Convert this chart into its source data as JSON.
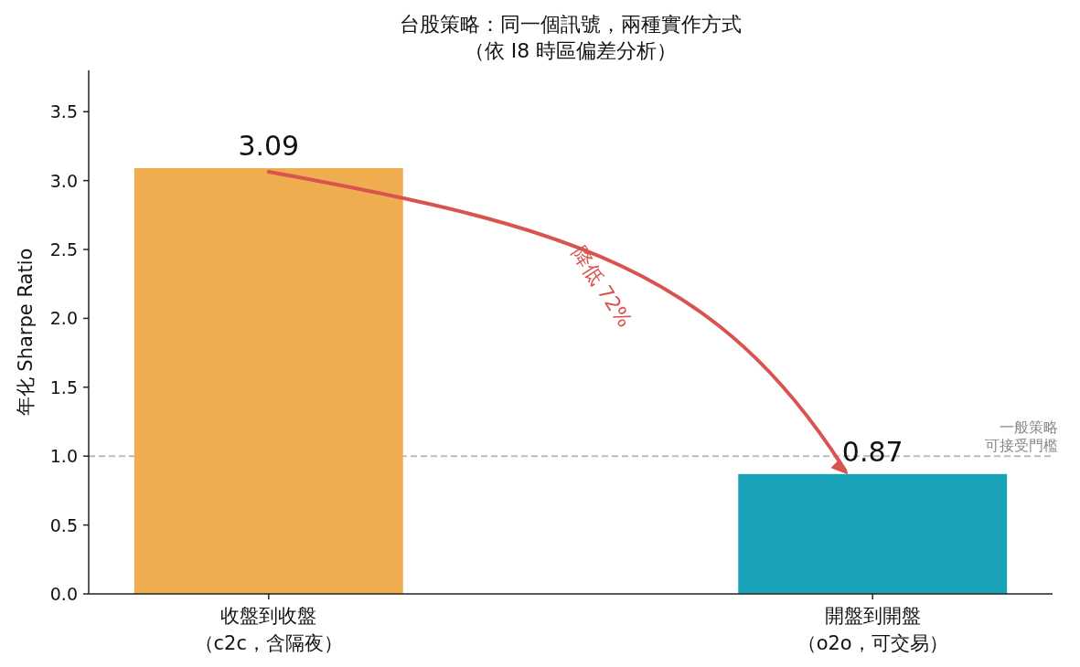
{
  "chart_data": {
    "type": "bar",
    "title": "台股策略：同一個訊號，兩種實作方式",
    "subtitle": "（依 I8 時區偏差分析）",
    "categories": [
      "收盤到收盤（c2c，含隔夜）",
      "開盤到開盤（o2o，可交易）"
    ],
    "values": [
      3.09,
      0.87
    ],
    "colors": [
      "#efad4f",
      "#19a3b8"
    ],
    "ylabel": "年化 Sharpe Ratio",
    "ylim": [
      0,
      3.8
    ],
    "yticks": [
      {
        "value": 0,
        "label": "0.0"
      },
      0.5,
      {
        "value": 1,
        "label": "1.0"
      },
      1.5,
      {
        "value": 2,
        "label": "2.0"
      },
      2.5,
      {
        "value": 3,
        "label": "3.0"
      },
      3.5
    ],
    "data_labels": true,
    "ref_lines": [
      {
        "axis": "y",
        "value": 1,
        "label": "一般策略可接受門檻",
        "color": "#bbbbbb",
        "line_style": "dashed"
      }
    ],
    "annotations": [
      "降低 72%"
    ]
  }
}
